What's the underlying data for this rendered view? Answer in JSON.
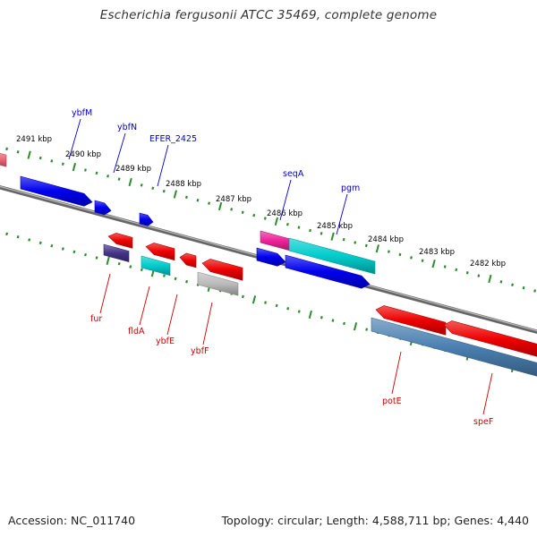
{
  "title": "Escherichia fergusonii ATCC 35469, complete genome",
  "footer": {
    "accession": "Accession: NC_011740",
    "summary": "Topology: circular; Length: 4,588,711 bp; Genes: 4,440"
  },
  "colors": {
    "forward_label": "#0000cc",
    "reverse_label": "#cc0000",
    "backbone": "#888888",
    "tick": "#2e8b2e",
    "gene_blue": "#0000ee",
    "gene_red": "#ee0000",
    "gene_cyan": "#00cccc",
    "gene_magenta": "#ee2299",
    "gene_gray": "#bbbbbb",
    "gene_navy": "#443388",
    "gene_steelblue": "#4a7fb0"
  },
  "scale_labels": [
    "2491 kbp",
    "2490 kbp",
    "2489 kbp",
    "2488 kbp",
    "2487 kbp",
    "2486 kbp",
    "2485 kbp",
    "2484 kbp",
    "2483 kbp",
    "2482 kbp"
  ],
  "forward_genes": [
    "ybfM",
    "ybfN",
    "EFER_2425",
    "seqA",
    "pgm"
  ],
  "reverse_genes": [
    "fur",
    "fldA",
    "ybfE",
    "ybfF",
    "potE",
    "speF"
  ]
}
